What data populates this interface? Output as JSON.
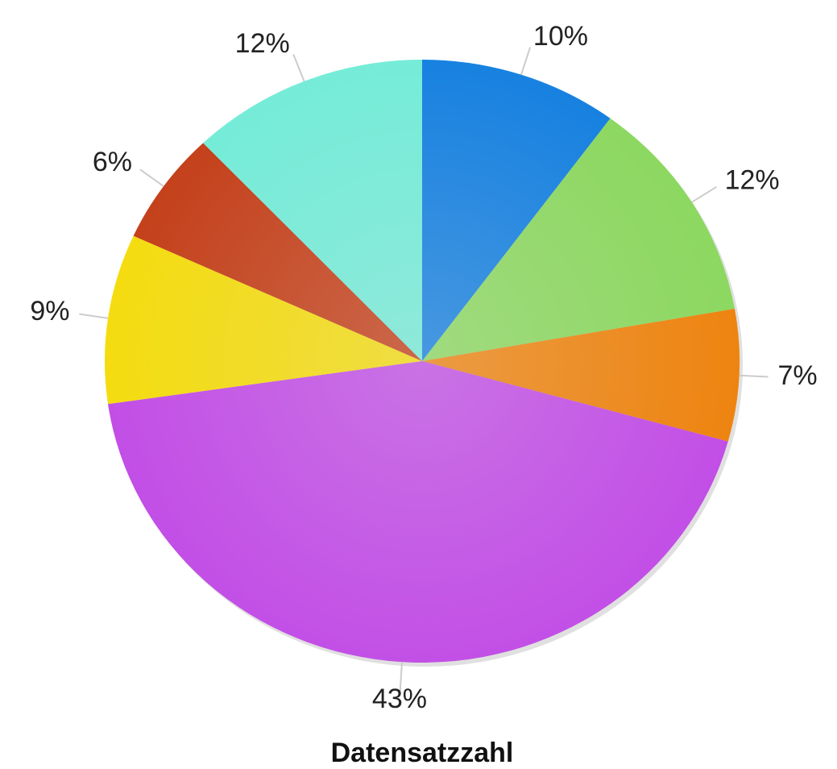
{
  "chart_data": {
    "type": "pie",
    "title": "Datensatzzahl",
    "values": [
      10,
      12,
      7,
      43,
      9,
      6,
      12
    ],
    "value_labels": [
      "10%",
      "12%",
      "7%",
      "43%",
      "9%",
      "6%",
      "12%"
    ],
    "colors": [
      "#1580e0",
      "#8cd860",
      "#ee8410",
      "#c24ee6",
      "#f4dc10",
      "#c4401a",
      "#74ecd8"
    ]
  }
}
